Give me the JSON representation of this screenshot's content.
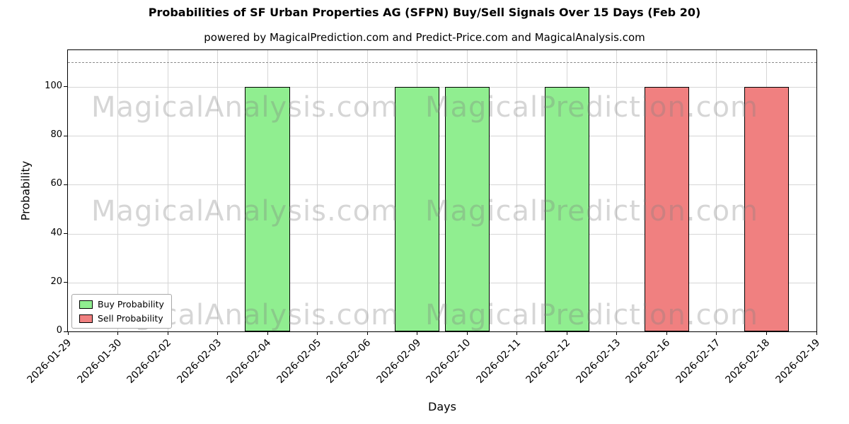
{
  "watermarks": {
    "left": "MagicalAnalysis.com",
    "right": "MagicalPrediction.com"
  },
  "chart_data": {
    "type": "bar",
    "title": "Probabilities of SF Urban Properties AG (SFPN) Buy/Sell Signals Over 15 Days (Feb 20)",
    "subtitle": "powered by MagicalPrediction.com and Predict-Price.com and MagicalAnalysis.com",
    "xlabel": "Days",
    "ylabel": "Probability",
    "ylim": [
      0,
      115
    ],
    "yticks": [
      0,
      20,
      40,
      60,
      80,
      100
    ],
    "dashed_line_y": 110,
    "grid": true,
    "legend_position": "lower left",
    "categories": [
      "2026-01-29",
      "2026-01-30",
      "2026-02-02",
      "2026-02-03",
      "2026-02-04",
      "2026-02-05",
      "2026-02-06",
      "2026-02-09",
      "2026-02-10",
      "2026-02-11",
      "2026-02-12",
      "2026-02-13",
      "2026-02-16",
      "2026-02-17",
      "2026-02-18",
      "2026-02-19"
    ],
    "series": [
      {
        "name": "Buy Probability",
        "color": "#90ee90",
        "edge_color": "#000000",
        "values": [
          0,
          0,
          0,
          0,
          100,
          0,
          0,
          100,
          100,
          0,
          100,
          0,
          0,
          0,
          0,
          0
        ]
      },
      {
        "name": "Sell Probability",
        "color": "#f08080",
        "edge_color": "#000000",
        "values": [
          0,
          0,
          0,
          0,
          0,
          0,
          0,
          0,
          0,
          0,
          0,
          0,
          100,
          0,
          100,
          0
        ]
      }
    ]
  }
}
